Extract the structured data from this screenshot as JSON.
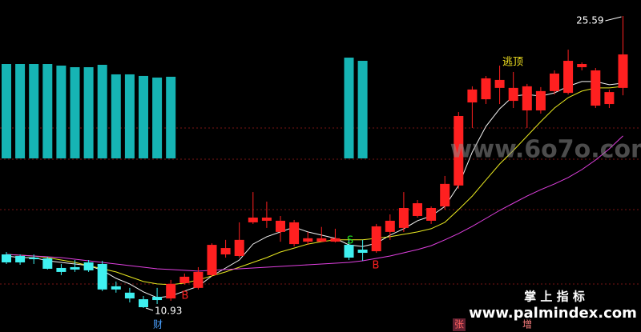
{
  "chart_data": {
    "type": "candlestick",
    "up_color": "#ff2020",
    "down_color": "#3ff0f0",
    "open": [
      13.62,
      13.54,
      13.46,
      13.42,
      12.94,
      12.98,
      13.22,
      13.14,
      12.02,
      11.7,
      11.37,
      11.49,
      11.41,
      12.18,
      11.94,
      12.58,
      13.62,
      13.54,
      15.23,
      15.31,
      14.75,
      14.14,
      14.26,
      14.26,
      14.26,
      14.1,
      13.86,
      13.78,
      14.75,
      14.95,
      15.55,
      15.31,
      16.03,
      17.08,
      21.25,
      21.41,
      21.98,
      21.33,
      20.85,
      20.85,
      21.82,
      21.73,
      23.02,
      21.09,
      21.17,
      21.98
    ],
    "close": [
      13.22,
      13.22,
      13.38,
      12.9,
      12.74,
      12.86,
      12.82,
      11.86,
      11.86,
      11.41,
      10.97,
      11.33,
      12.14,
      12.5,
      12.74,
      14.1,
      13.94,
      14.35,
      15.47,
      15.47,
      15.31,
      15.23,
      14.43,
      14.43,
      14.43,
      13.46,
      13.7,
      15.03,
      15.31,
      15.95,
      16.19,
      15.95,
      17.16,
      20.57,
      21.9,
      22.46,
      22.38,
      21.98,
      22.06,
      21.82,
      22.7,
      23.34,
      23.18,
      22.86,
      21.77,
      23.66
    ],
    "high": [
      13.74,
      13.62,
      13.62,
      13.5,
      13.14,
      13.34,
      13.34,
      13.3,
      12.26,
      11.94,
      11.53,
      11.94,
      12.34,
      12.66,
      12.98,
      14.18,
      14.35,
      15.23,
      16.75,
      16.27,
      15.55,
      15.35,
      14.75,
      15.0,
      14.91,
      14.35,
      14.35,
      15.15,
      15.63,
      16.75,
      16.35,
      16.03,
      17.56,
      20.77,
      22.06,
      22.58,
      23.1,
      22.78,
      22.18,
      22.02,
      22.86,
      23.9,
      23.26,
      22.98,
      21.89,
      25.59
    ],
    "low": [
      13.14,
      13.1,
      13.14,
      12.86,
      12.58,
      12.74,
      12.74,
      11.78,
      11.7,
      11.21,
      10.93,
      11.13,
      11.29,
      12.1,
      11.86,
      12.5,
      13.46,
      13.46,
      15.15,
      14.95,
      14.26,
      14.02,
      14.1,
      14.26,
      14.22,
      13.34,
      13.3,
      13.7,
      14.35,
      14.75,
      15.47,
      15.15,
      15.87,
      16.92,
      19.97,
      21.17,
      21.17,
      20.97,
      19.97,
      20.69,
      21.65,
      21.65,
      22.86,
      20.97,
      20.97,
      21.61
    ],
    "series": [
      {
        "color": "#f4f4f4",
        "values": [
          13.54,
          13.46,
          13.46,
          13.3,
          13.22,
          13.14,
          13.06,
          12.82,
          12.42,
          12.14,
          11.74,
          11.45,
          11.53,
          11.78,
          12.02,
          12.54,
          12.94,
          13.34,
          14.14,
          14.51,
          14.75,
          14.99,
          14.75,
          14.59,
          14.43,
          14.1,
          14.02,
          14.18,
          14.59,
          14.91,
          15.31,
          15.55,
          16.03,
          17.08,
          18.76,
          20.05,
          20.93,
          21.57,
          21.65,
          21.57,
          21.73,
          22.06,
          22.3,
          22.3,
          22.14,
          22.22
        ]
      },
      {
        "color": "#e8e820",
        "values": [
          13.62,
          13.58,
          13.54,
          13.46,
          13.34,
          13.22,
          13.06,
          12.9,
          12.74,
          12.5,
          12.26,
          12.14,
          12.1,
          12.18,
          12.34,
          12.54,
          12.74,
          12.98,
          13.22,
          13.46,
          13.74,
          13.94,
          14.14,
          14.26,
          14.35,
          14.35,
          14.35,
          14.43,
          14.51,
          14.63,
          14.75,
          14.91,
          15.23,
          15.87,
          16.55,
          17.36,
          18.16,
          18.84,
          19.56,
          20.29,
          20.97,
          21.49,
          21.82,
          21.98,
          21.98,
          22.06
        ]
      },
      {
        "color": "#e040e0",
        "values": [
          13.62,
          13.58,
          13.54,
          13.5,
          13.46,
          13.38,
          13.3,
          13.22,
          13.14,
          13.06,
          12.98,
          12.9,
          12.86,
          12.82,
          12.78,
          12.82,
          12.86,
          12.9,
          12.94,
          12.98,
          13.02,
          13.06,
          13.1,
          13.14,
          13.18,
          13.22,
          13.3,
          13.42,
          13.54,
          13.7,
          13.86,
          14.06,
          14.35,
          14.67,
          15.03,
          15.43,
          15.83,
          16.19,
          16.55,
          16.87,
          17.16,
          17.48,
          17.88,
          18.36,
          18.92,
          19.57
        ]
      }
    ],
    "signal_color": "#16b4b4",
    "signal_bars": [
      23.18,
      23.18,
      23.18,
      23.18,
      23.1,
      23.02,
      23.02,
      23.14,
      22.66,
      22.66,
      22.58,
      22.5,
      22.54,
      null,
      null,
      null,
      null,
      null,
      null,
      null,
      null,
      null,
      null,
      null,
      null,
      23.5,
      23.34,
      null,
      null,
      null,
      null,
      null,
      null,
      null,
      null,
      null,
      null,
      null,
      null,
      null,
      null,
      null,
      null,
      null,
      null,
      null
    ],
    "annotations": [
      "B",
      "B",
      "S",
      "逃顶"
    ],
    "markers": [
      "财",
      "张",
      "增"
    ]
  },
  "watermarks": [
    "www.6o7o.com",
    "掌 上 指 标",
    "www.palmindex.com"
  ]
}
